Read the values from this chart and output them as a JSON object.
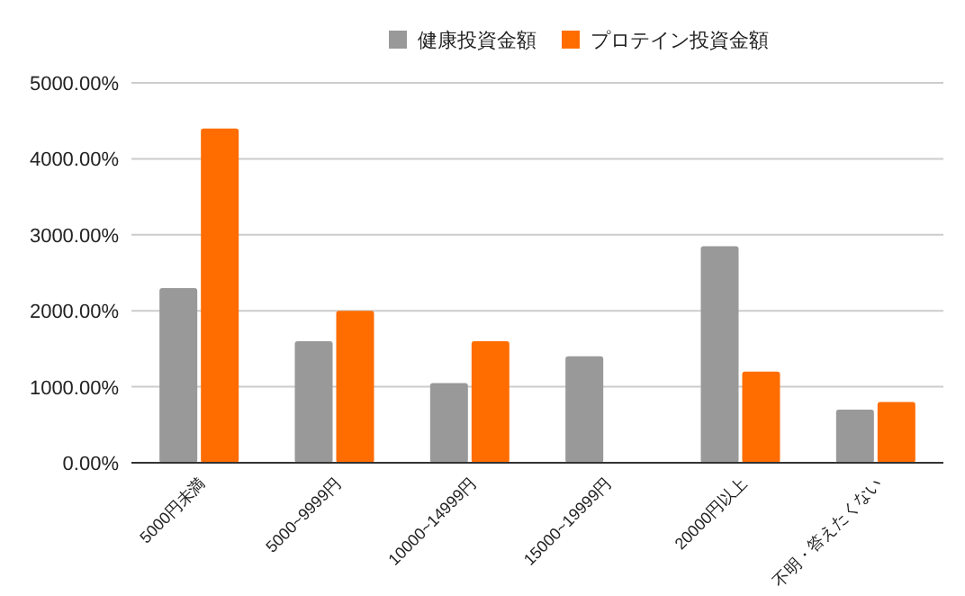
{
  "chart_data": {
    "type": "bar",
    "categories": [
      "5000円未満",
      "5000~9999円",
      "10000~14999円",
      "15000~19999円",
      "20000円以上",
      "不明・答えたくない"
    ],
    "series": [
      {
        "name": "健康投資金額",
        "color": "#999999",
        "values": [
          2300,
          1600,
          1050,
          1400,
          2850,
          700
        ]
      },
      {
        "name": "プロテイン投資金額",
        "color": "#ff6d01",
        "values": [
          4400,
          2000,
          1600,
          null,
          1200,
          800
        ]
      }
    ],
    "ylim": [
      0,
      5000
    ],
    "yticks": [
      {
        "value": 0,
        "label": "0.00%"
      },
      {
        "value": 1000,
        "label": "1000.00%"
      },
      {
        "value": 2000,
        "label": "2000.00%"
      },
      {
        "value": 3000,
        "label": "3000.00%"
      },
      {
        "value": 4000,
        "label": "4000.00%"
      },
      {
        "value": 5000,
        "label": "5000.00%"
      }
    ],
    "grid": "y",
    "legend": "top"
  }
}
